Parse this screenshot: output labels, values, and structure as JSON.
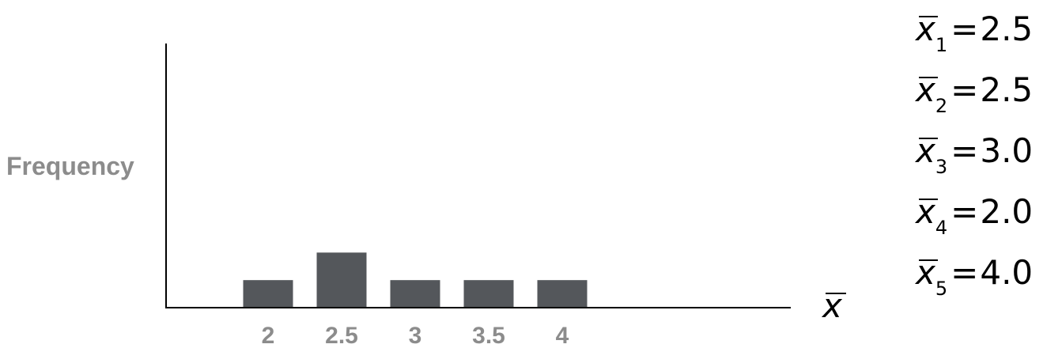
{
  "chart_data": {
    "type": "bar",
    "categories": [
      "2",
      "2.5",
      "3",
      "3.5",
      "4"
    ],
    "values": [
      1,
      2,
      1,
      1,
      1
    ],
    "ylabel": "Frequency",
    "xlabel": "x̄",
    "ylim": [
      0,
      7
    ],
    "grid": false,
    "bar_color": "#54575b",
    "tick_color": "#8c8c8c"
  },
  "equations": [
    {
      "var": "x",
      "sub": "1",
      "op": "=",
      "val": "2.5"
    },
    {
      "var": "x",
      "sub": "2",
      "op": "=",
      "val": "2.5"
    },
    {
      "var": "x",
      "sub": "3",
      "op": "=",
      "val": "3.0"
    },
    {
      "var": "x",
      "sub": "4",
      "op": "=",
      "val": "2.0"
    },
    {
      "var": "x",
      "sub": "5",
      "op": "=",
      "val": "4.0"
    }
  ]
}
